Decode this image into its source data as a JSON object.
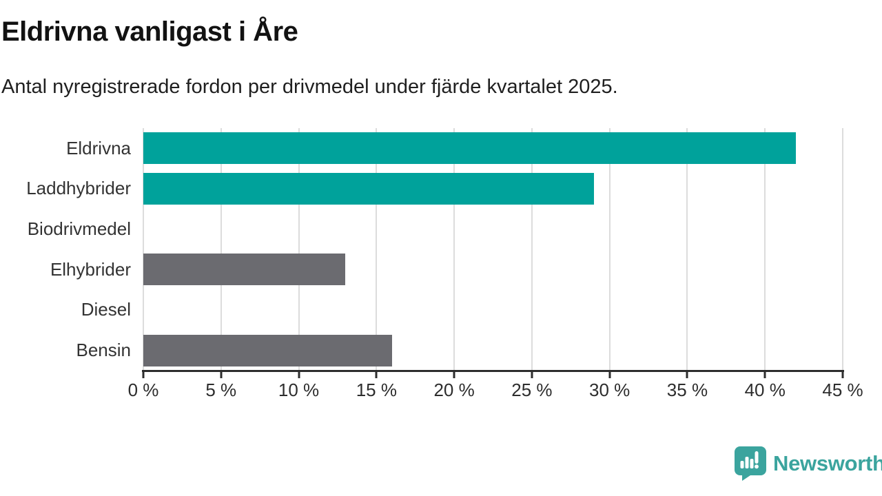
{
  "chart_data": {
    "type": "bar",
    "orientation": "horizontal",
    "title": "Eldrivna vanligast i Åre",
    "subtitle": "Antal nyregistrerade fordon per drivmedel under fjärde kvartalet 2025.",
    "categories": [
      "Eldrivna",
      "Laddhybrider",
      "Biodrivmedel",
      "Elhybrider",
      "Diesel",
      "Bensin"
    ],
    "values": [
      42,
      29,
      0,
      13,
      0,
      16
    ],
    "unit": "%",
    "xlim": [
      0,
      45
    ],
    "x_ticks": [
      0,
      5,
      10,
      15,
      20,
      25,
      30,
      35,
      40,
      45
    ],
    "x_tick_labels": [
      "0 %",
      "5 %",
      "10 %",
      "15 %",
      "20 %",
      "25 %",
      "30 %",
      "35 %",
      "40 %",
      "45 %"
    ],
    "grid": true,
    "legend": "none",
    "bar_colors": [
      "#00a29b",
      "#00a29b",
      "#6b6b70",
      "#6b6b70",
      "#6b6b70",
      "#6b6b70"
    ]
  },
  "colors": {
    "highlight_bar": "#00a29b",
    "default_bar": "#6b6b70",
    "gridline": "#dcdcdc",
    "axis": "#2d2d2d",
    "title_text": "#121212",
    "body_text": "#333333"
  },
  "branding": {
    "logo_text": "Newsworthy",
    "logo_color": "#3ba49e",
    "logo_icon": "speech-bubble-bar-chart-icon"
  }
}
